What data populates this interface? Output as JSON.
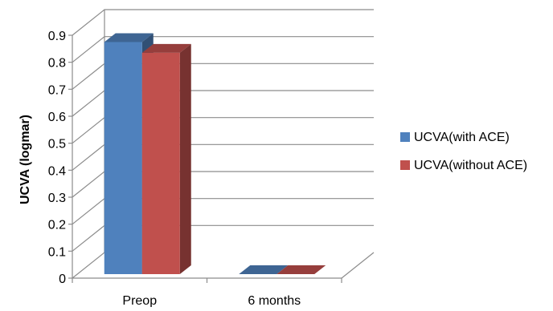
{
  "chart_data": {
    "type": "bar",
    "style": "3d-clustered-column",
    "categories": [
      "Preop",
      "6 months"
    ],
    "series": [
      {
        "name": "UCVA(with ACE)",
        "values": [
          0.86,
          0.0
        ],
        "color": "#4F81BD"
      },
      {
        "name": "UCVA(without ACE)",
        "values": [
          0.82,
          0.0
        ],
        "color": "#C0504D"
      }
    ],
    "ylabel": "UCVA (logmar)",
    "xlabel": "",
    "title": "",
    "ylim": [
      0,
      0.9
    ],
    "yticks": [
      "0",
      "0.1",
      "0.2",
      "0.3",
      "0.4",
      "0.5",
      "0.6",
      "0.7",
      "0.8",
      "0.9"
    ],
    "grid": true,
    "legend_position": "right"
  }
}
